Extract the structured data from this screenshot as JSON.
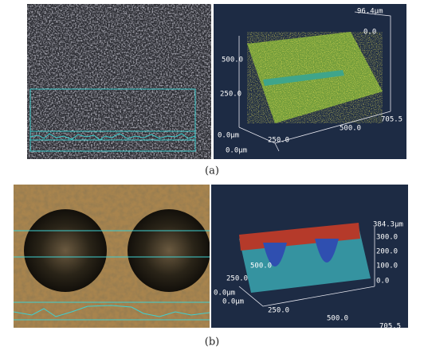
{
  "panels": [
    {
      "label": "(a)",
      "plot_labels": [
        "96.4μm",
        "0.0",
        "500.0",
        "250.0",
        "0.0μm",
        "0.0μm",
        "250.0",
        "500.0",
        "705.5"
      ]
    },
    {
      "label": "(b)",
      "plot_labels": [
        "384.3μm",
        "300.0",
        "200.0",
        "100.0",
        "0.0",
        "500.0",
        "250.0",
        "0.0μm",
        "0.0μm",
        "250.0",
        "500.0",
        "705.5"
      ]
    }
  ]
}
